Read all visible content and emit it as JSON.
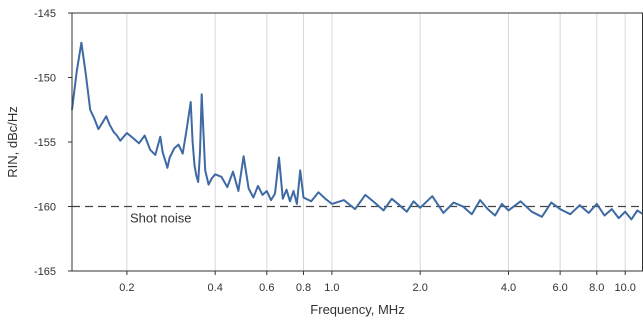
{
  "chart_data": {
    "type": "line",
    "xlabel": "Frequency, MHz",
    "ylabel": "RIN, dBc/Hz",
    "x_scale": "log",
    "xlim": [
      0.13,
      11.5
    ],
    "ylim": [
      -165,
      -145
    ],
    "x_ticks": [
      0.2,
      0.4,
      0.6,
      0.8,
      1.0,
      2.0,
      4.0,
      6.0,
      8.0,
      10.0
    ],
    "x_tick_labels": [
      "0.2",
      "0.4",
      "0.6",
      "0.8",
      "1.0",
      "2.0",
      "4.0",
      "6.0",
      "8.0",
      "10.0"
    ],
    "y_ticks": [
      -165,
      -160,
      -155,
      -150,
      -145
    ],
    "y_tick_labels": [
      "-165",
      "-160",
      "-155",
      "-150",
      "-145"
    ],
    "grid": "vertical",
    "colors": {
      "series": "#3e6aa3",
      "reference": "#444444",
      "grid": "#d8d8d8"
    },
    "reference_line": {
      "y": -160,
      "label": "Shot noise",
      "style": "dashed"
    },
    "series": [
      {
        "x": [
          0.13,
          0.135,
          0.14,
          0.145,
          0.15,
          0.155,
          0.16,
          0.165,
          0.17,
          0.175,
          0.18,
          0.185,
          0.19,
          0.2,
          0.21,
          0.22,
          0.23,
          0.24,
          0.25,
          0.26,
          0.265,
          0.27,
          0.275,
          0.28,
          0.29,
          0.3,
          0.31,
          0.32,
          0.33,
          0.335,
          0.34,
          0.345,
          0.35,
          0.355,
          0.36,
          0.37,
          0.38,
          0.39,
          0.4,
          0.42,
          0.44,
          0.46,
          0.48,
          0.5,
          0.52,
          0.54,
          0.56,
          0.58,
          0.6,
          0.62,
          0.64,
          0.66,
          0.68,
          0.7,
          0.72,
          0.74,
          0.76,
          0.78,
          0.8,
          0.85,
          0.9,
          0.95,
          1.0,
          1.1,
          1.2,
          1.3,
          1.4,
          1.5,
          1.6,
          1.7,
          1.8,
          1.9,
          2.0,
          2.2,
          2.4,
          2.6,
          2.8,
          3.0,
          3.2,
          3.4,
          3.6,
          3.8,
          4.0,
          4.4,
          4.8,
          5.2,
          5.6,
          6.0,
          6.5,
          7.0,
          7.5,
          8.0,
          8.5,
          9.0,
          9.5,
          10.0,
          10.5,
          11.0,
          11.5
        ],
        "y": [
          -152.5,
          -149.5,
          -147.3,
          -149.8,
          -152.5,
          -153.2,
          -154.0,
          -153.5,
          -153.0,
          -153.7,
          -154.2,
          -154.5,
          -154.9,
          -154.3,
          -154.7,
          -155.1,
          -154.5,
          -155.6,
          -156.0,
          -154.6,
          -155.8,
          -156.4,
          -157.0,
          -156.2,
          -155.5,
          -155.2,
          -155.9,
          -154.0,
          -151.9,
          -155.0,
          -156.8,
          -157.6,
          -158.1,
          -155.8,
          -151.3,
          -157.2,
          -158.3,
          -157.8,
          -157.5,
          -157.7,
          -158.5,
          -157.3,
          -158.8,
          -156.1,
          -158.6,
          -159.3,
          -158.4,
          -159.1,
          -158.8,
          -159.5,
          -159.0,
          -156.2,
          -159.4,
          -158.7,
          -159.6,
          -158.8,
          -159.8,
          -157.2,
          -159.3,
          -159.6,
          -158.9,
          -159.4,
          -159.8,
          -159.5,
          -160.2,
          -159.1,
          -159.7,
          -160.3,
          -159.4,
          -159.9,
          -160.4,
          -159.6,
          -160.1,
          -159.2,
          -160.5,
          -159.7,
          -160.0,
          -160.6,
          -159.5,
          -160.2,
          -160.7,
          -159.8,
          -160.3,
          -159.6,
          -160.4,
          -160.8,
          -159.7,
          -160.2,
          -160.6,
          -159.9,
          -160.5,
          -159.8,
          -160.7,
          -160.2,
          -160.9,
          -160.4,
          -161.0,
          -160.3,
          -160.6
        ]
      }
    ]
  }
}
